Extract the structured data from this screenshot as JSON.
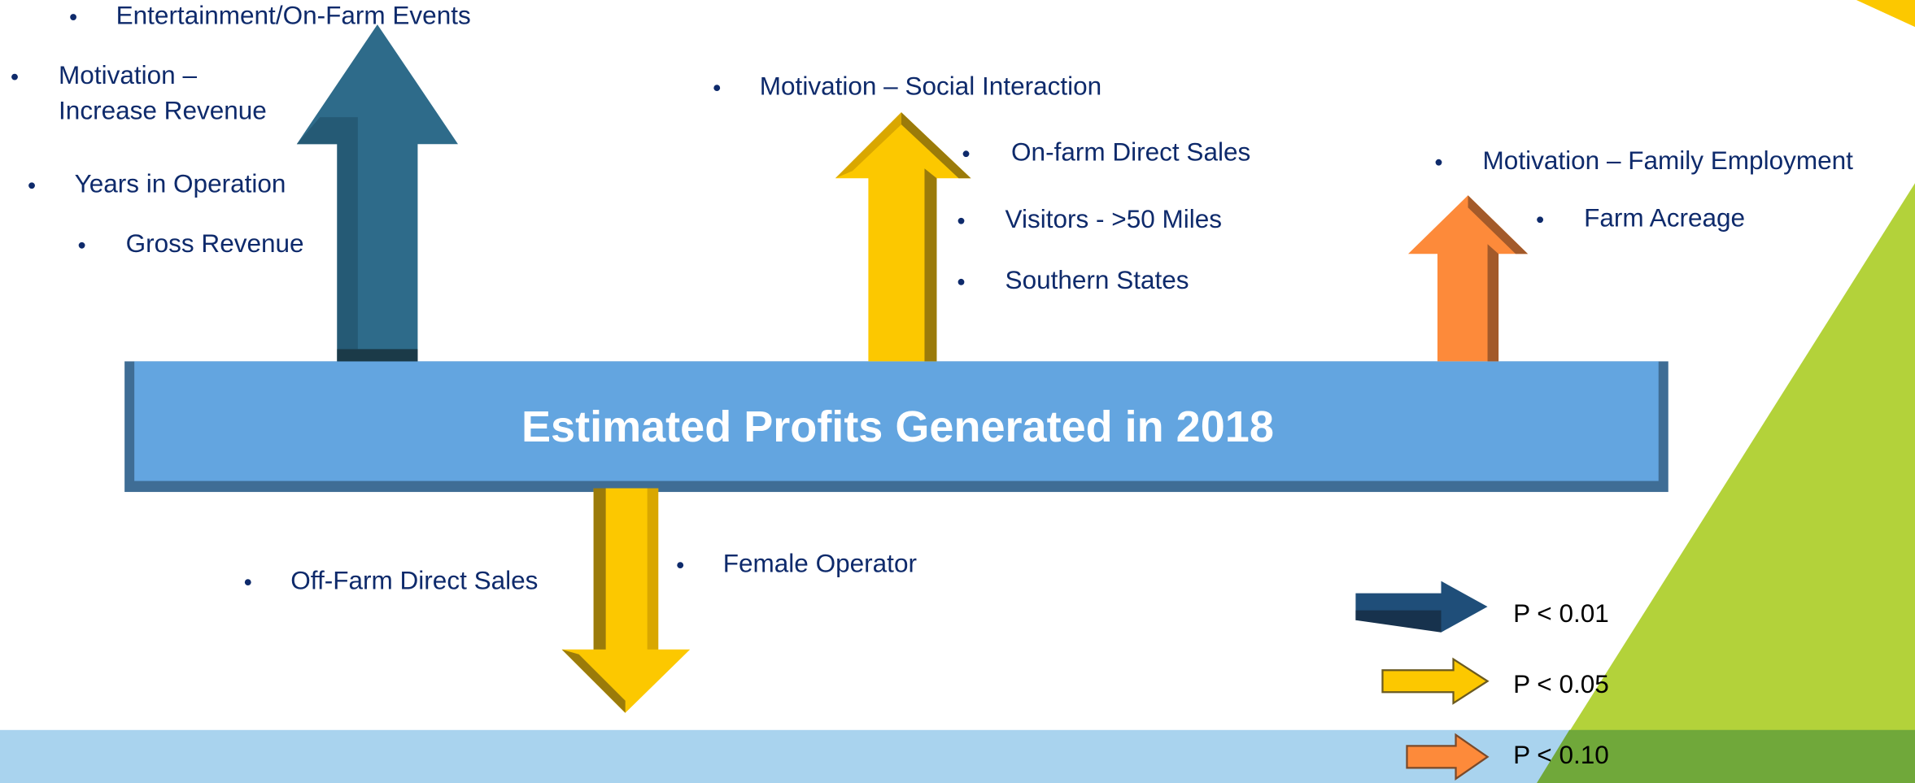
{
  "title": "Estimated Profits Generated in 2018",
  "positive_p001": {
    "items": [
      "Entertainment/On-Farm Events",
      [
        "Motivation –",
        "Increase Revenue"
      ],
      "Years in Operation",
      "Gross Revenue"
    ]
  },
  "positive_p005": {
    "items": [
      "Motivation – Social Interaction",
      "On-farm Direct Sales",
      "Visitors - >50 Miles",
      "Southern States"
    ]
  },
  "positive_p010": {
    "items": [
      "Motivation – Family Employment",
      "Farm Acreage"
    ]
  },
  "negative_p005": {
    "items": [
      "Off-Farm Direct Sales",
      "Female Operator"
    ]
  },
  "legend": [
    "P < 0.01",
    "P < 0.05",
    "P < 0.10"
  ]
}
